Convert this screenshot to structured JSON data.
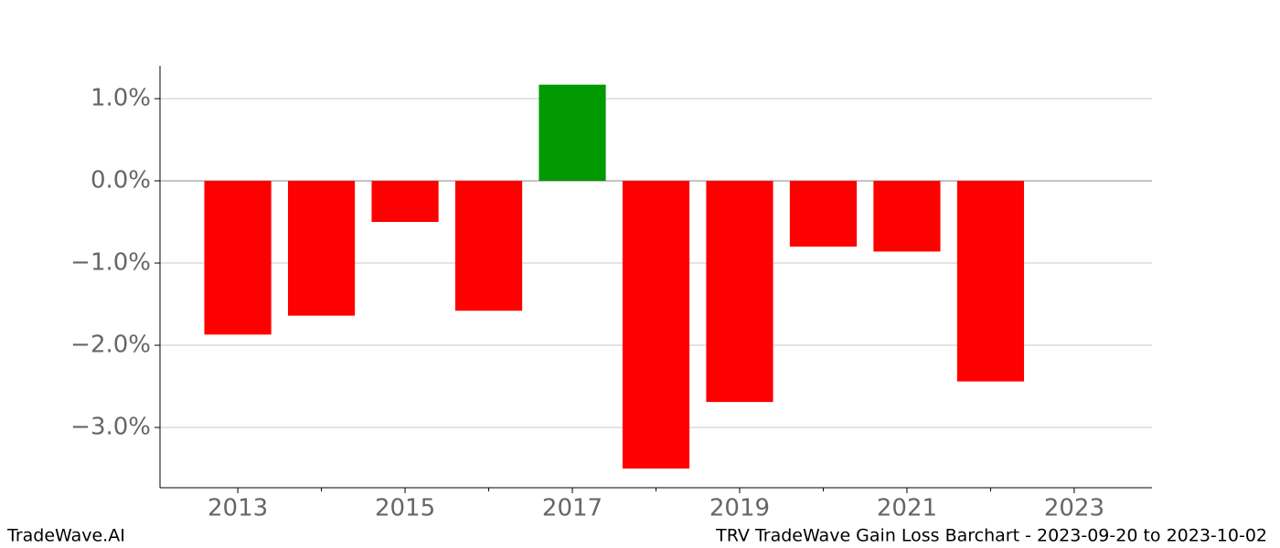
{
  "chart_data": {
    "type": "bar",
    "x": [
      2013,
      2014,
      2015,
      2016,
      2017,
      2018,
      2019,
      2020,
      2021,
      2022
    ],
    "values": [
      -1.87,
      -1.64,
      -0.5,
      -1.58,
      1.17,
      -3.5,
      -2.69,
      -0.8,
      -0.86,
      -2.44
    ],
    "colors": [
      "#ff0000",
      "#ff0000",
      "#ff0000",
      "#ff0000",
      "#009900",
      "#ff0000",
      "#ff0000",
      "#ff0000",
      "#ff0000",
      "#ff0000"
    ],
    "xlim": [
      2012.07,
      2023.93
    ],
    "xticks": [
      2013,
      2015,
      2017,
      2019,
      2021,
      2023
    ],
    "xminorticks": [
      2014,
      2016,
      2018,
      2020,
      2022
    ],
    "ylim": [
      -3.733,
      1.4
    ],
    "yticks": [
      {
        "value": 1,
        "label": "1.0%"
      },
      {
        "value": 0,
        "label": "0.0%"
      },
      {
        "value": -1,
        "label": "−1.0%"
      },
      {
        "value": -2,
        "label": "−2.0%"
      },
      {
        "value": -3,
        "label": "−3.0%"
      }
    ],
    "grid": true,
    "watermark": "TradeWave.AI",
    "footer": "TRV TradeWave Gain Loss Barchart - 2023-09-20 to 2023-10-02"
  }
}
